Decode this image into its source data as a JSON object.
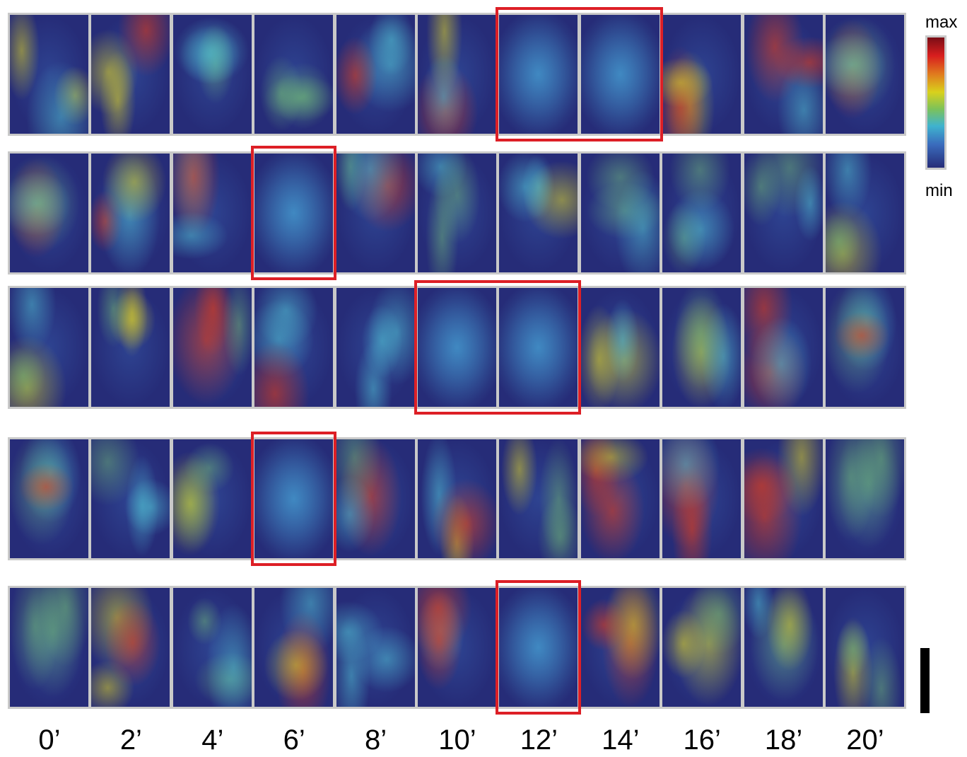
{
  "time_labels": [
    "0’",
    "2’",
    "4’",
    "6’",
    "8’",
    "10’",
    "12’",
    "14’",
    "16’",
    "18’",
    "20’"
  ],
  "colorbar": {
    "max_label": "max",
    "min_label": "min",
    "colors": [
      "#7a0d16",
      "#d81e1e",
      "#e07a1e",
      "#d9d11c",
      "#7cc25a",
      "#3fb3cf",
      "#3a6cbd",
      "#262c78"
    ]
  },
  "rows": [
    {
      "highlighted_columns": [
        6,
        7
      ]
    },
    {
      "highlighted_columns": [
        3
      ]
    },
    {
      "highlighted_columns": [
        5,
        6
      ]
    },
    {
      "highlighted_columns": [
        3
      ]
    },
    {
      "highlighted_columns": [
        6
      ]
    }
  ]
}
